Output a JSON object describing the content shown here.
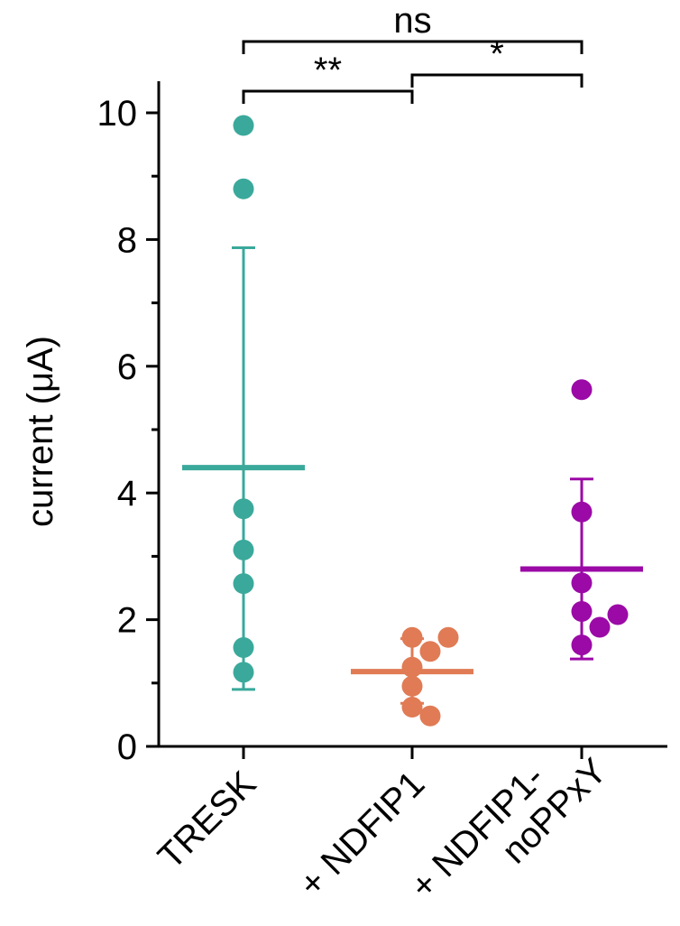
{
  "chart_data": {
    "type": "scatter",
    "ylabel": "current (μA)",
    "ylim": [
      0,
      10
    ],
    "yticks": [
      0,
      2,
      4,
      6,
      8,
      10
    ],
    "grid": false,
    "legend": "none",
    "categories": [
      "TRESK",
      "+ NDFIP1",
      "+ NDFIP1-\nnoPPxY"
    ],
    "category_lines": [
      [
        "TRESK"
      ],
      [
        "+ NDFIP1"
      ],
      [
        "+ NDFIP1-",
        "noPPxY"
      ]
    ],
    "groups": [
      {
        "category": "TRESK",
        "color": "#3aa99b",
        "points": [
          9.8,
          8.8,
          3.75,
          3.1,
          2.57,
          1.56,
          1.17
        ],
        "mean": 4.4,
        "error_low": 0.9,
        "error_high": 7.87
      },
      {
        "category": "+ NDFIP1",
        "color": "#e07b55",
        "points": [
          1.72,
          1.72,
          1.5,
          1.25,
          0.95,
          0.62,
          0.48
        ],
        "mean": 1.18,
        "error_low": 0.68,
        "error_high": 1.7
      },
      {
        "category": "+ NDFIP1-\nnoPPxY",
        "color": "#9b0aa6",
        "points": [
          5.63,
          3.7,
          2.58,
          2.13,
          2.08,
          1.88,
          1.6
        ],
        "mean": 2.8,
        "error_low": 1.38,
        "error_high": 4.22
      }
    ],
    "significance": [
      {
        "from": 0,
        "to": 2,
        "label": "ns"
      },
      {
        "from": 0,
        "to": 1,
        "label": "**"
      },
      {
        "from": 1,
        "to": 2,
        "label": "*"
      }
    ]
  }
}
